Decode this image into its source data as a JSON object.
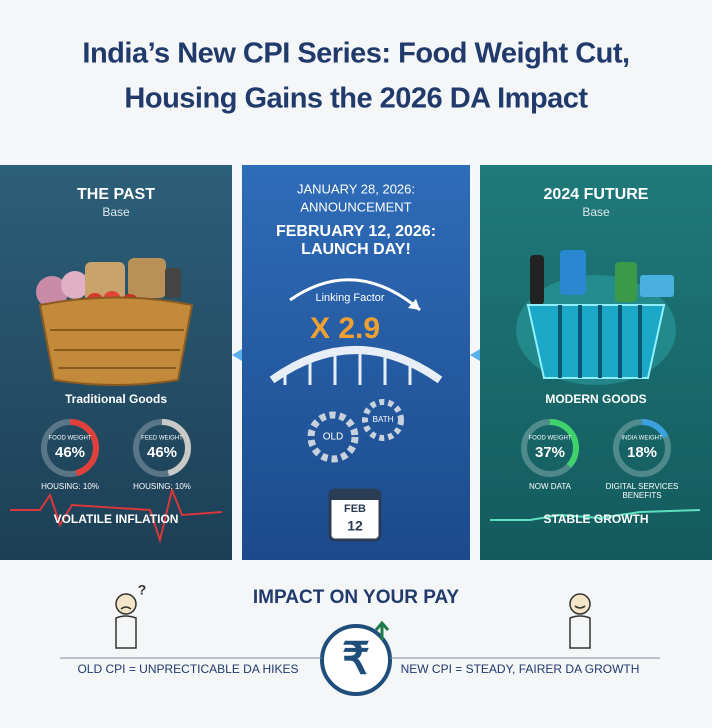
{
  "header": {
    "title_lines": [
      "India’s New CPI Series: Food Weight Cut,",
      "Housing Gains the 2026 DA Impact"
    ]
  },
  "panels": [
    {
      "title": "THE PAST",
      "subtitle": "Base",
      "caption": "Traditional Goods",
      "gauges": [
        {
          "label": "FOOD WEIGHT",
          "value": 46,
          "value_label": "46%",
          "note": [
            "HOUSING: 10%"
          ],
          "color": "#e0403a"
        },
        {
          "label": "FEED WEIGHT",
          "value": 46,
          "value_label": "46%",
          "note": [
            "HOUSING: 10%"
          ],
          "color": "#c9c9c9"
        }
      ],
      "footer": "VOLATILE INFLATION"
    },
    {
      "title": "2024 FUTURE",
      "subtitle": "Base",
      "caption": "MODERN GOODS",
      "gauges": [
        {
          "label": "FOOD WEIGHT",
          "value": 37,
          "value_label": "37%",
          "note": [
            "NOW DATA"
          ],
          "color": "#3fd26a"
        },
        {
          "label": "INDIA WEIGHT",
          "value": 18,
          "value_label": "18%",
          "note": [
            "DIGITAL SERVICES",
            "BENEFITS"
          ],
          "color": "#3aa0e0"
        }
      ],
      "footer": "STABLE GROWTH"
    }
  ],
  "middle": {
    "lines": [
      "JANUARY 28, 2026:",
      "ANNOUNCEMENT",
      "FEBRUARY 12, 2026:",
      "LAUNCH DAY!"
    ],
    "factor_label": "Linking Factor",
    "factor": "X 2.9",
    "gears": [
      "OLD",
      "BATH"
    ],
    "calendar": {
      "month": "FEB",
      "day": "12"
    }
  },
  "impact": {
    "title": "IMPACT ON YOUR PAY",
    "question": "?",
    "old": "OLD CPI = UNPRECTICABLE DA HIKES",
    "new": "NEW CPI = STEADY, FAIRER DA GROWTH"
  }
}
